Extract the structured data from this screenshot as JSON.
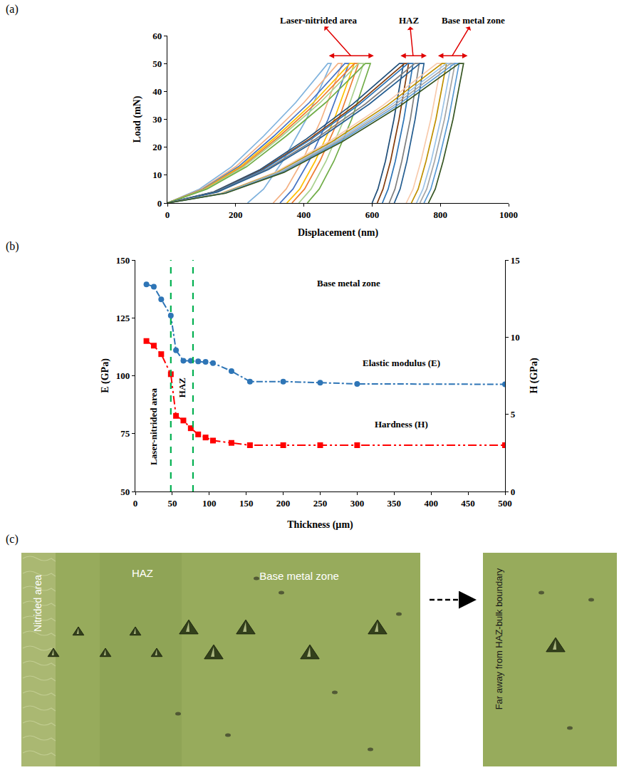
{
  "chart_data": [
    {
      "label": "(a)",
      "type": "line",
      "x_label": "Displacement (nm)",
      "y_label": "Load (mN)",
      "xlim": [
        0,
        1000
      ],
      "xticks": [
        0,
        200,
        400,
        600,
        800,
        1000
      ],
      "ylim": [
        0,
        60
      ],
      "yticks": [
        0,
        10,
        20,
        30,
        40,
        50,
        60
      ],
      "grid": false,
      "annotations": [
        {
          "text": "Laser-nitrided area",
          "x": [
            470,
            605
          ]
        },
        {
          "text": "HAZ",
          "x": [
            680,
            760
          ]
        },
        {
          "text": "Base metal zone",
          "x": [
            790,
            880
          ]
        }
      ],
      "series": [
        {
          "color": "#7fb2dd",
          "x": [
            0,
            94,
            188,
            282,
            376,
            470,
            480,
            407,
            338,
            282,
            235
          ],
          "values": [
            0,
            5,
            13,
            24,
            36,
            50,
            50,
            30,
            15,
            5,
            0
          ]
        },
        {
          "color": "#f4b183",
          "x": [
            0,
            100,
            200,
            300,
            400,
            500,
            512,
            451,
            395,
            348,
            310
          ],
          "values": [
            0,
            5,
            13,
            24,
            36,
            50,
            50,
            30,
            15,
            5,
            0
          ]
        },
        {
          "color": "#4472c4",
          "x": [
            0,
            104,
            208,
            312,
            416,
            520,
            532,
            471,
            415,
            368,
            330
          ],
          "values": [
            0,
            5,
            13,
            24,
            36,
            50,
            50,
            30,
            15,
            5,
            0
          ]
        },
        {
          "color": "#ffc000",
          "x": [
            0,
            107,
            214,
            321,
            428,
            535,
            548,
            489,
            433,
            388,
            350
          ],
          "values": [
            0,
            5,
            13,
            24,
            36,
            50,
            50,
            30,
            15,
            5,
            0
          ]
        },
        {
          "color": "#ed7d31",
          "x": [
            0,
            110,
            219,
            329,
            438,
            548,
            560,
            502,
            447,
            402,
            365
          ],
          "values": [
            0,
            5,
            13,
            24,
            36,
            50,
            50,
            30,
            15,
            5,
            0
          ]
        },
        {
          "color": "#a9d18e",
          "x": [
            0,
            112,
            224,
            336,
            448,
            560,
            575,
            518,
            465,
            421,
            385
          ],
          "values": [
            0,
            5,
            13,
            24,
            36,
            50,
            50,
            30,
            15,
            5,
            0
          ]
        },
        {
          "color": "#70ad47",
          "x": [
            0,
            116,
            232,
            348,
            464,
            580,
            595,
            540,
            488,
            445,
            410
          ],
          "values": [
            0,
            5,
            13,
            24,
            36,
            50,
            50,
            30,
            15,
            5,
            0
          ]
        },
        {
          "color": "#1f4e79",
          "x": [
            0,
            136,
            272,
            408,
            544,
            680,
            692,
            664,
            639,
            617,
            600
          ],
          "values": [
            0,
            4,
            12,
            23,
            35.5,
            50,
            50,
            30,
            15,
            5,
            0
          ]
        },
        {
          "color": "#843c0c",
          "x": [
            0,
            139,
            278,
            417,
            556,
            695,
            707,
            679,
            654,
            632,
            615
          ],
          "values": [
            0,
            4,
            12,
            23,
            35.5,
            50,
            50,
            30,
            15,
            5,
            0
          ]
        },
        {
          "color": "#2e75b6",
          "x": [
            0,
            141,
            282,
            423,
            564,
            705,
            720,
            693,
            668,
            647,
            630
          ],
          "values": [
            0,
            4,
            12,
            23,
            35.5,
            50,
            50,
            30,
            15,
            5,
            0
          ]
        },
        {
          "color": "#7f7f7f",
          "x": [
            0,
            145,
            290,
            435,
            580,
            725,
            738,
            712,
            687,
            667,
            650
          ],
          "values": [
            0,
            4,
            12,
            23,
            35.5,
            50,
            50,
            30,
            15,
            5,
            0
          ]
        },
        {
          "color": "#255e91",
          "x": [
            0,
            148,
            296,
            444,
            592,
            740,
            752,
            726,
            702,
            682,
            665
          ],
          "values": [
            0,
            4,
            12,
            23,
            35.5,
            50,
            50,
            30,
            15,
            5,
            0
          ]
        },
        {
          "color": "#f8cbad",
          "x": [
            0,
            158,
            316,
            474,
            632,
            790,
            803,
            772,
            743,
            720,
            700
          ],
          "values": [
            0,
            3.5,
            11,
            22,
            35,
            50,
            50,
            30,
            15,
            5,
            0
          ]
        },
        {
          "color": "#bf9000",
          "x": [
            0,
            161,
            322,
            483,
            644,
            805,
            818,
            787,
            758,
            735,
            715
          ],
          "values": [
            0,
            3.5,
            11,
            22,
            35,
            50,
            50,
            30,
            15,
            5,
            0
          ]
        },
        {
          "color": "#9dc3e6",
          "x": [
            0,
            164,
            327,
            491,
            654,
            818,
            832,
            801,
            773,
            749,
            730
          ],
          "values": [
            0,
            3.5,
            11,
            22,
            35,
            50,
            50,
            30,
            15,
            5,
            0
          ]
        },
        {
          "color": "#a5a5a5",
          "x": [
            0,
            166,
            332,
            498,
            664,
            830,
            843,
            812,
            783,
            760,
            740
          ],
          "values": [
            0,
            3.5,
            11,
            22,
            35,
            50,
            50,
            30,
            15,
            5,
            0
          ]
        },
        {
          "color": "#5b9bd5",
          "x": [
            0,
            168,
            337,
            505,
            674,
            842,
            855,
            824,
            795,
            772,
            752
          ],
          "values": [
            0,
            3.5,
            11,
            22,
            35,
            50,
            50,
            30,
            15,
            5,
            0
          ]
        },
        {
          "color": "#375623",
          "x": [
            0,
            171,
            342,
            513,
            684,
            855,
            868,
            837,
            808,
            785,
            765
          ],
          "values": [
            0,
            3.5,
            11,
            22,
            35,
            50,
            50,
            30,
            15,
            5,
            0
          ]
        }
      ]
    },
    {
      "label": "(b)",
      "type": "line",
      "x_label": "Thickness (µm)",
      "y_label": "E (GPa)",
      "y2_label": "H (GPa)",
      "xlim": [
        0,
        500
      ],
      "xticks": [
        0,
        50,
        100,
        150,
        200,
        250,
        300,
        350,
        400,
        450,
        500
      ],
      "ylim": [
        50,
        150
      ],
      "yticks": [
        50,
        75,
        100,
        125,
        150
      ],
      "y2lim": [
        0,
        15
      ],
      "y2ticks": [
        0,
        5,
        10,
        15
      ],
      "grid": false,
      "x": [
        15,
        25,
        35,
        48,
        55,
        65,
        75,
        85,
        95,
        105,
        130,
        155,
        200,
        250,
        300,
        500
      ],
      "series": [
        {
          "name": "Elastic modulus (E)",
          "color": "#2e75b6",
          "marker": "circle",
          "line_style": "dashdot",
          "values": [
            139.5,
            138.5,
            133,
            126,
            111,
            106.5,
            106.5,
            106.2,
            106,
            105.5,
            102,
            97.5,
            97.5,
            97,
            96.5,
            96.3
          ]
        },
        {
          "name": "Hardness (H)",
          "color": "#ff0000",
          "marker": "square",
          "line_style": "dashdotdot",
          "axis": "y2",
          "values": [
            9.75,
            9.45,
            8.9,
            7.6,
            4.9,
            4.6,
            4.1,
            3.7,
            3.5,
            3.3,
            3.15,
            3.0,
            3.0,
            3.0,
            3.0,
            3.0
          ]
        }
      ],
      "boundaries": {
        "values": [
          48,
          78
        ],
        "color": "#00b050",
        "line_style": "dash"
      },
      "zones": [
        "Laser-nitrided area",
        "HAZ",
        "Base metal zone"
      ]
    }
  ],
  "micrograph": {
    "label": "(c)",
    "regions": [
      "Nitrided area",
      "HAZ",
      "Base metal zone"
    ],
    "inset": "Far away from HAZ-bulk boundary"
  }
}
